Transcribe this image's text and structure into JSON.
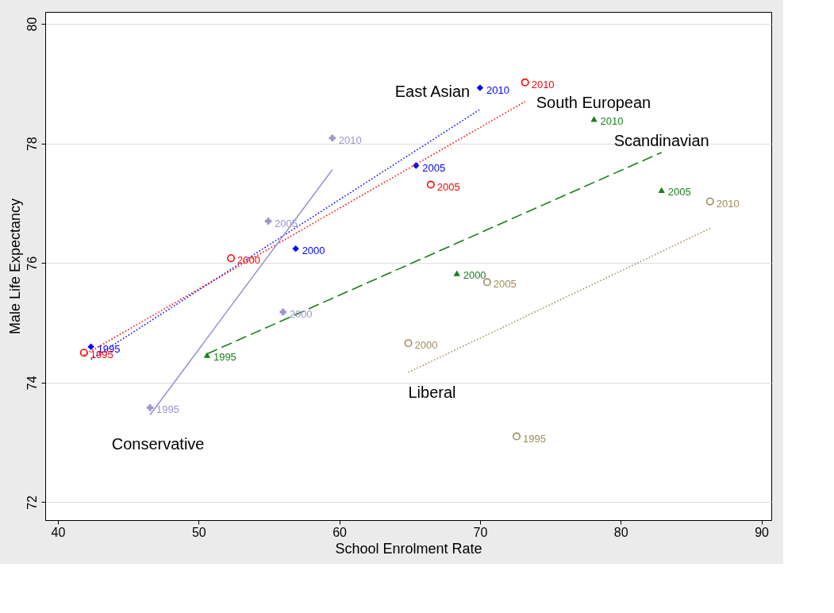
{
  "chart_data": {
    "type": "scatter",
    "xlabel": "School Enrolment Rate",
    "ylabel": "Male Life Expectancy",
    "xlim": [
      39.1,
      90.7
    ],
    "ylim": [
      71.7,
      80.2
    ],
    "xticks": [
      40,
      50,
      60,
      70,
      80,
      90
    ],
    "yticks": [
      72,
      74,
      76,
      78,
      80
    ],
    "grid": "y",
    "series": [
      {
        "marker": "diamond",
        "color": "#0000ff",
        "x": [
          42.35,
          56.9,
          65.45,
          70.0
        ],
        "values": [
          74.6,
          76.24,
          77.63,
          78.93
        ]
      },
      {
        "marker": "circle",
        "color": "#ff0000",
        "x": [
          41.85,
          52.3,
          66.5,
          73.2
        ],
        "values": [
          74.5,
          76.08,
          77.31,
          79.02
        ]
      },
      {
        "marker": "cross",
        "color": "#9a96d0",
        "x": [
          46.55,
          56.0,
          54.95,
          59.5
        ],
        "values": [
          73.58,
          75.18,
          76.7,
          78.09
        ]
      },
      {
        "marker": "triangle",
        "color": "#1a7f1a",
        "x": [
          50.6,
          68.35,
          82.9,
          78.1
        ],
        "values": [
          74.46,
          75.83,
          77.22,
          78.41
        ]
      },
      {
        "marker": "circle",
        "color": "#a08c5a",
        "x": [
          72.6,
          64.9,
          70.5,
          86.35
        ],
        "values": [
          73.1,
          74.66,
          75.68,
          77.03
        ]
      },
      {
        "type": "line",
        "name": "East Asian",
        "line_style": "dotted",
        "color": "#0000ff",
        "x": [
          42.35,
          70.0
        ],
        "values": [
          74.39,
          78.57
        ]
      },
      {
        "type": "line",
        "name": "South European",
        "line_style": "dotted",
        "color": "#ff0000",
        "x": [
          41.85,
          73.2
        ],
        "values": [
          74.46,
          78.7
        ]
      },
      {
        "type": "line",
        "name": "Conservative",
        "line_style": "solid",
        "color": "#9a96d0",
        "x": [
          46.55,
          59.5
        ],
        "values": [
          73.46,
          77.56
        ]
      },
      {
        "type": "line",
        "name": "Scandinavian",
        "line_style": "dashed",
        "color": "#1a7f1a",
        "x": [
          50.6,
          82.9
        ],
        "values": [
          74.48,
          77.85
        ]
      },
      {
        "type": "line",
        "name": "Liberal",
        "line_style": "dotted",
        "color": "#a08c5a",
        "x": [
          64.9,
          86.35
        ],
        "values": [
          74.17,
          76.58
        ]
      }
    ],
    "annotations": [
      {
        "text": "1995",
        "x": 42.35,
        "y": 74.6
      },
      {
        "text": "2000",
        "x": 56.9,
        "y": 76.24
      },
      {
        "text": "2005",
        "x": 65.45,
        "y": 77.63
      },
      {
        "text": "2010",
        "x": 70.0,
        "y": 78.93
      },
      {
        "text": "1995",
        "x": 41.85,
        "y": 74.5
      },
      {
        "text": "2000",
        "x": 52.3,
        "y": 76.08
      },
      {
        "text": "2005",
        "x": 66.5,
        "y": 77.31
      },
      {
        "text": "2010",
        "x": 73.2,
        "y": 79.02
      },
      {
        "text": "1995",
        "x": 46.55,
        "y": 73.58
      },
      {
        "text": "2000",
        "x": 56.0,
        "y": 75.18
      },
      {
        "text": "2005",
        "x": 54.95,
        "y": 76.7
      },
      {
        "text": "2010",
        "x": 59.5,
        "y": 78.09
      },
      {
        "text": "1995",
        "x": 50.6,
        "y": 74.46
      },
      {
        "text": "2000",
        "x": 68.35,
        "y": 75.83
      },
      {
        "text": "2005",
        "x": 82.9,
        "y": 77.22
      },
      {
        "text": "2010",
        "x": 78.1,
        "y": 78.41
      },
      {
        "text": "1995",
        "x": 72.6,
        "y": 73.1
      },
      {
        "text": "2000",
        "x": 64.9,
        "y": 74.66
      },
      {
        "text": "2005",
        "x": 70.5,
        "y": 75.68
      },
      {
        "text": "2010",
        "x": 86.35,
        "y": 77.03
      }
    ]
  }
}
